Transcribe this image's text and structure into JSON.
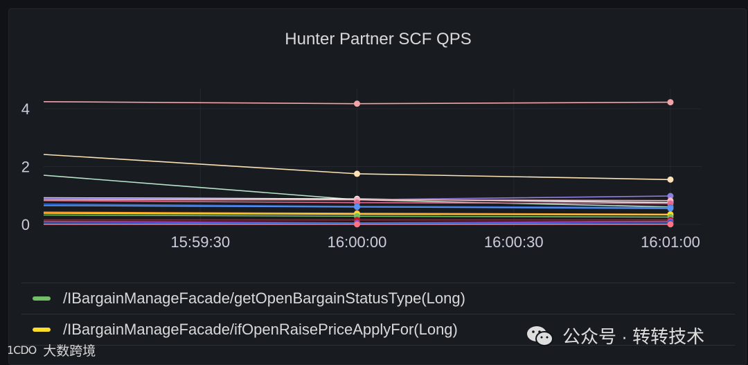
{
  "panel": {
    "title": "Hunter Partner SCF QPS"
  },
  "chart_data": {
    "type": "line",
    "title": "Hunter Partner SCF QPS",
    "x": [
      "15:59:00",
      "16:00:00",
      "16:01:00"
    ],
    "x_ticks": [
      "15:59:30",
      "16:00:00",
      "16:00:30",
      "16:01:00"
    ],
    "y_ticks": [
      "0",
      "2",
      "4"
    ],
    "ylim": [
      -0.1,
      4.7
    ],
    "grid": true,
    "legend_position": "bottom",
    "series": [
      {
        "color": "#f2a3a8",
        "values": [
          4.25,
          4.18,
          4.23
        ]
      },
      {
        "color": "#fce2b5",
        "values": [
          2.42,
          1.75,
          1.55
        ]
      },
      {
        "color": "#b8e4c9",
        "values": [
          1.7,
          0.85,
          0.6
        ]
      },
      {
        "color": "#ffffff",
        "values": [
          0.92,
          0.88,
          0.75
        ]
      },
      {
        "color": "#8f7fe0",
        "values": [
          0.9,
          0.85,
          0.98
        ]
      },
      {
        "color": "#f7b8c2",
        "values": [
          0.85,
          0.85,
          0.82
        ]
      },
      {
        "color": "#e36a8e",
        "values": [
          0.82,
          0.75,
          0.72
        ]
      },
      {
        "color": "#3d71d9",
        "values": [
          0.7,
          0.62,
          0.58
        ]
      },
      {
        "color": "#5794f2",
        "values": [
          0.65,
          0.6,
          0.55
        ]
      },
      {
        "color": "#ff9830",
        "values": [
          0.42,
          0.38,
          0.35
        ]
      },
      {
        "color": "#fade2a",
        "values": [
          0.38,
          0.35,
          0.33
        ]
      },
      {
        "color": "#73bf69",
        "values": [
          0.32,
          0.28,
          0.25
        ]
      },
      {
        "color": "#c4162a",
        "values": [
          0.15,
          0.15,
          0.15
        ]
      },
      {
        "color": "#a352cc",
        "values": [
          0.1,
          0.05,
          0.1
        ]
      },
      {
        "color": "#1f60c4",
        "values": [
          0.05,
          0.02,
          0.05
        ]
      },
      {
        "color": "#ff7383",
        "values": [
          0.0,
          0.0,
          0.0
        ]
      }
    ],
    "legend": [
      {
        "color": "#73bf69",
        "label": "/IBargainManageFacade/getOpenBargainStatusType(Long)"
      },
      {
        "color": "#fade2a",
        "label": "/IBargainManageFacade/ifOpenRaisePriceApplyFor(Long)"
      }
    ]
  },
  "watermarks": {
    "left_logo": "1CDO",
    "left_text": "大数跨境",
    "right_text": "公众号 · 转转技术"
  }
}
